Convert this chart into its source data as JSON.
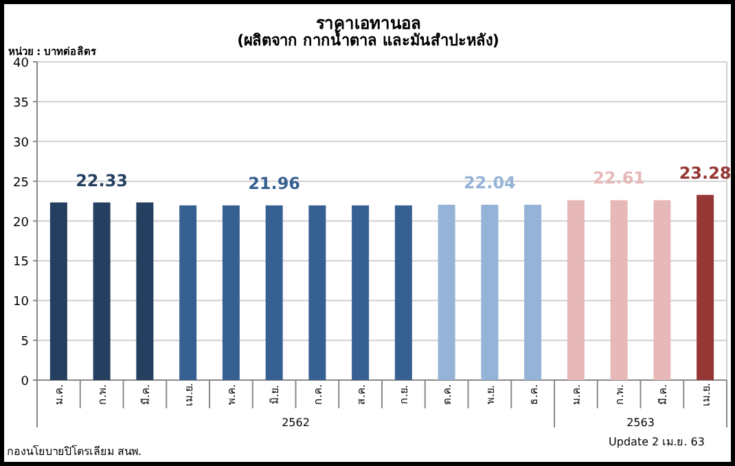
{
  "chart_data": {
    "type": "bar",
    "title": "ราคาเอทานอล",
    "subtitle": "(ผลิตจาก กากน้ำตาล และมันสำปะหลัง)",
    "ylabel": "หน่วย : บาทต่อลิตร",
    "categories": [
      "ม.ค.",
      "ก.พ.",
      "มี.ค.",
      "เม.ย.",
      "พ.ค.",
      "มิ.ย.",
      "ก.ค.",
      "ส.ค.",
      "ก.ย.",
      "ต.ค.",
      "พ.ย.",
      "ธ.ค.",
      "ม.ค.",
      "ก.พ.",
      "มี.ค.",
      "เม.ย."
    ],
    "values": [
      22.33,
      22.33,
      22.33,
      21.96,
      21.96,
      21.96,
      21.96,
      21.96,
      21.96,
      22.04,
      22.04,
      22.04,
      22.61,
      22.61,
      22.61,
      23.28
    ],
    "colors": [
      "#243f60",
      "#243f60",
      "#243f60",
      "#376092",
      "#376092",
      "#376092",
      "#376092",
      "#376092",
      "#376092",
      "#95b3d7",
      "#95b3d7",
      "#95b3d7",
      "#e6b9b8",
      "#e6b9b8",
      "#e6b9b8",
      "#953735"
    ],
    "value_labels": [
      null,
      "22.33",
      null,
      null,
      null,
      "21.96",
      null,
      null,
      null,
      null,
      "22.04",
      null,
      null,
      "22.61",
      null,
      "23.28"
    ],
    "ylim": [
      0,
      40
    ],
    "yticks": [
      0,
      5,
      10,
      15,
      20,
      25,
      30,
      35,
      40
    ],
    "grid": "y",
    "annotations": [
      "2562",
      "2563",
      "Update 2  เม.ย. 63",
      "กองนโยบายปิโตรเลียม สนพ."
    ]
  }
}
